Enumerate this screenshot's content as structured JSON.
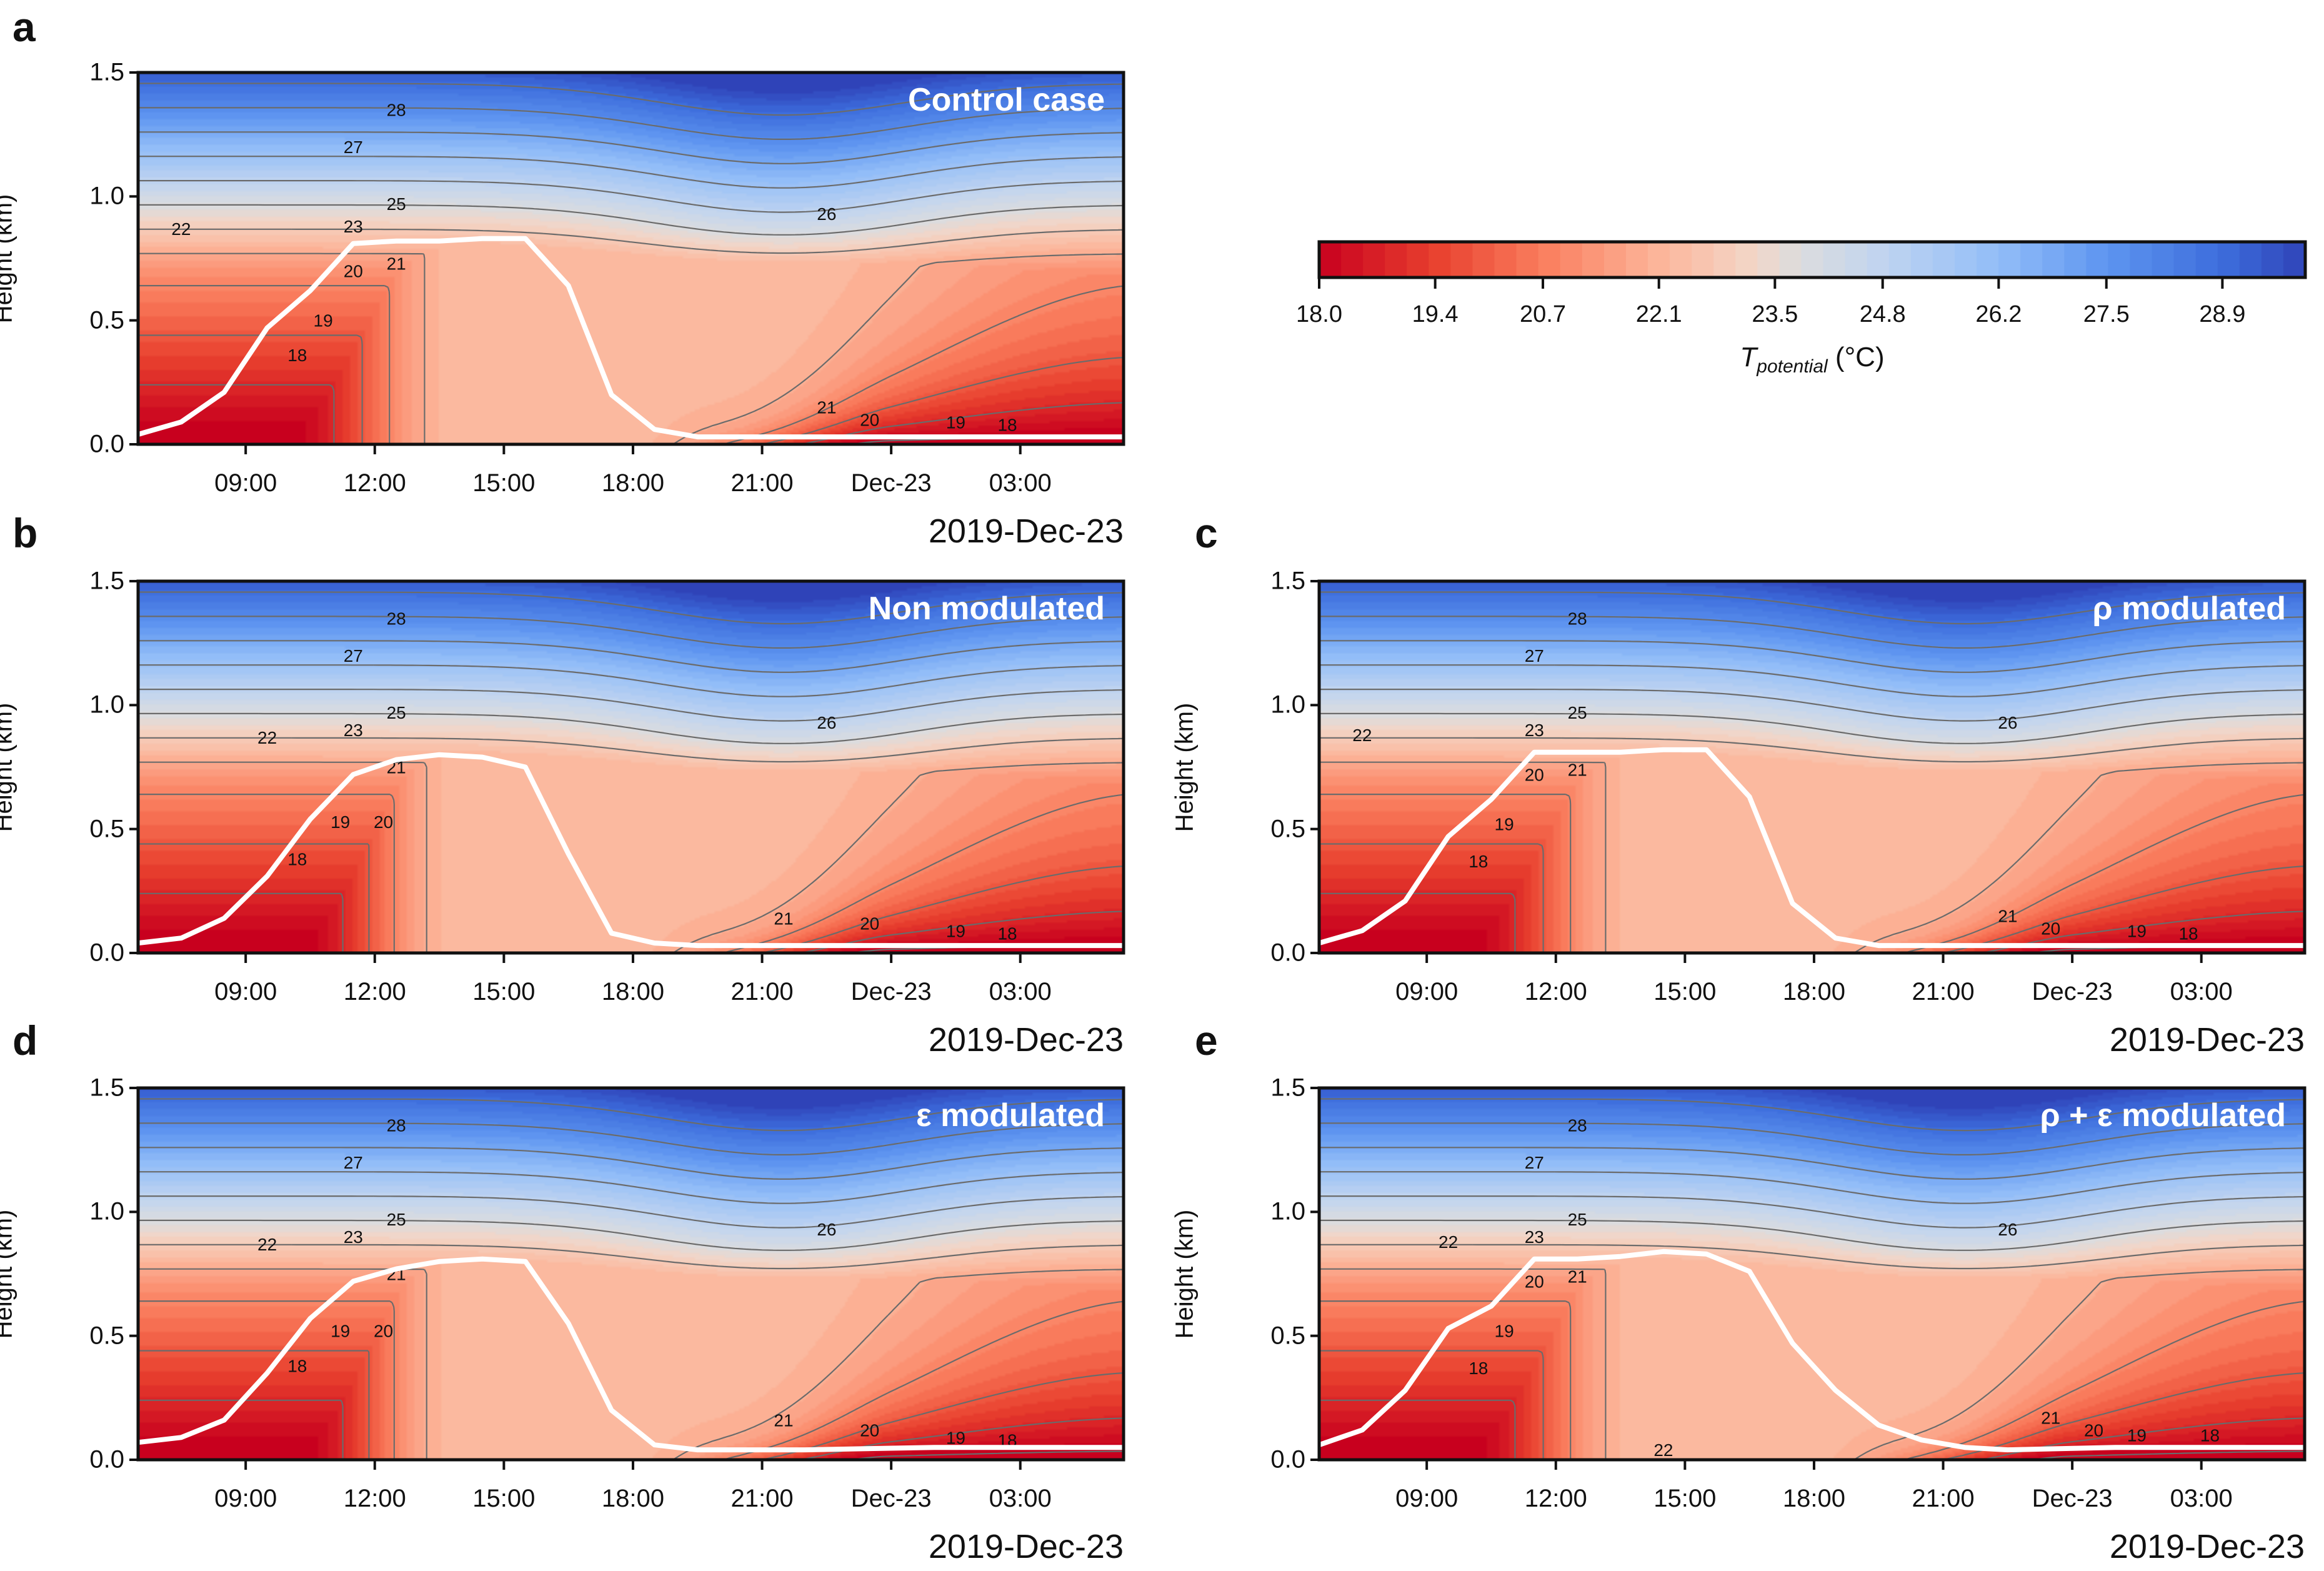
{
  "chart_data": {
    "type": "heatmap",
    "description_axis": {
      "ylabel": "Height (km)",
      "ylim": [
        0,
        1.5
      ],
      "yticks": [
        "0.0",
        "0.5",
        "1.0",
        "1.5"
      ],
      "ytick_values": [
        0,
        0.5,
        1.0,
        1.5
      ],
      "xlim_hours": [
        6.5,
        29.4
      ],
      "xticks": [
        "09:00",
        "12:00",
        "15:00",
        "18:00",
        "21:00",
        "Dec-23",
        "03:00"
      ],
      "xtick_hours": [
        9,
        12,
        15,
        18,
        21,
        24,
        27
      ],
      "date_label": "2019-Dec-23"
    },
    "colorbar": {
      "label_main": "T",
      "label_sub": "potential",
      "label_unit": " (°C)",
      "range": [
        18.0,
        29.9
      ],
      "ticks": [
        "18.0",
        "19.4",
        "20.7",
        "22.1",
        "23.5",
        "24.8",
        "26.2",
        "27.5",
        "28.9"
      ],
      "tick_values": [
        18.0,
        19.4,
        20.7,
        22.1,
        23.5,
        24.8,
        26.2,
        27.5,
        28.9
      ],
      "levels": 45
    },
    "contour_levels": [
      18,
      19,
      20,
      21,
      22,
      23,
      24,
      25,
      26,
      27,
      28,
      29
    ],
    "panels": [
      {
        "letter": "a",
        "title": "Control case",
        "blh_hours": [
          6.5,
          7.5,
          8.5,
          9.5,
          10.5,
          11.5,
          12.5,
          13.5,
          14.5,
          15.5,
          16.5,
          17.5,
          18.5,
          19.5,
          22,
          25,
          29.4
        ],
        "blh_km": [
          0.04,
          0.09,
          0.21,
          0.47,
          0.62,
          0.81,
          0.82,
          0.82,
          0.83,
          0.83,
          0.64,
          0.2,
          0.06,
          0.03,
          0.03,
          0.03,
          0.03
        ],
        "labels": [
          [
            "28",
            12.5,
            1.35
          ],
          [
            "27",
            11.5,
            1.2
          ],
          [
            "25",
            12.5,
            0.97
          ],
          [
            "23",
            11.5,
            0.88
          ],
          [
            "22",
            7.5,
            0.87
          ],
          [
            "20",
            11.5,
            0.7
          ],
          [
            "21",
            12.5,
            0.73
          ],
          [
            "19",
            10.8,
            0.5
          ],
          [
            "18",
            10.2,
            0.36
          ],
          [
            "26",
            22.5,
            0.93
          ],
          [
            "21",
            22.5,
            0.15
          ],
          [
            "20",
            23.5,
            0.1
          ],
          [
            "19",
            25.5,
            0.09
          ],
          [
            "18",
            26.7,
            0.08
          ]
        ]
      },
      {
        "letter": "b",
        "title": "Non modulated",
        "blh_hours": [
          6.5,
          7.5,
          8.5,
          9.5,
          10.5,
          11.5,
          12.5,
          13.5,
          14.5,
          15.5,
          16.5,
          17.5,
          18.5,
          19.5,
          22,
          25,
          29.4
        ],
        "blh_km": [
          0.04,
          0.06,
          0.14,
          0.31,
          0.54,
          0.72,
          0.78,
          0.8,
          0.79,
          0.75,
          0.4,
          0.08,
          0.04,
          0.03,
          0.03,
          0.03,
          0.03
        ],
        "labels": [
          [
            "28",
            12.5,
            1.35
          ],
          [
            "27",
            11.5,
            1.2
          ],
          [
            "25",
            12.5,
            0.97
          ],
          [
            "23",
            11.5,
            0.9
          ],
          [
            "22",
            9.5,
            0.87
          ],
          [
            "21",
            12.5,
            0.75
          ],
          [
            "20",
            12.2,
            0.53
          ],
          [
            "19",
            11.2,
            0.53
          ],
          [
            "18",
            10.2,
            0.38
          ],
          [
            "26",
            22.5,
            0.93
          ],
          [
            "21",
            21.5,
            0.14
          ],
          [
            "20",
            23.5,
            0.12
          ],
          [
            "19",
            25.5,
            0.09
          ],
          [
            "18",
            26.7,
            0.08
          ]
        ]
      },
      {
        "letter": "c",
        "title": "ρ modulated",
        "blh_hours": [
          6.5,
          7.5,
          8.5,
          9.5,
          10.5,
          11.5,
          12.5,
          13.5,
          14.5,
          15.5,
          16.5,
          17.5,
          18.5,
          19.5,
          22,
          25,
          29.4
        ],
        "blh_km": [
          0.04,
          0.09,
          0.21,
          0.47,
          0.62,
          0.81,
          0.81,
          0.81,
          0.82,
          0.82,
          0.63,
          0.2,
          0.06,
          0.03,
          0.03,
          0.03,
          0.03
        ],
        "labels": [
          [
            "28",
            12.5,
            1.35
          ],
          [
            "27",
            11.5,
            1.2
          ],
          [
            "25",
            12.5,
            0.97
          ],
          [
            "23",
            11.5,
            0.9
          ],
          [
            "22",
            7.5,
            0.88
          ],
          [
            "20",
            11.5,
            0.72
          ],
          [
            "21",
            12.5,
            0.74
          ],
          [
            "19",
            10.8,
            0.52
          ],
          [
            "18",
            10.2,
            0.37
          ],
          [
            "26",
            22.5,
            0.93
          ],
          [
            "21",
            22.5,
            0.15
          ],
          [
            "20",
            23.5,
            0.1
          ],
          [
            "19",
            25.5,
            0.09
          ],
          [
            "18",
            26.7,
            0.08
          ]
        ]
      },
      {
        "letter": "d",
        "title": "ε modulated",
        "blh_hours": [
          6.5,
          7.5,
          8.5,
          9.5,
          10.5,
          11.5,
          12.5,
          13.5,
          14.5,
          15.5,
          16.5,
          17.5,
          18.5,
          19.5,
          22,
          25,
          29.4
        ],
        "blh_km": [
          0.07,
          0.09,
          0.16,
          0.35,
          0.57,
          0.72,
          0.77,
          0.8,
          0.81,
          0.8,
          0.55,
          0.2,
          0.06,
          0.04,
          0.04,
          0.05,
          0.05
        ],
        "labels": [
          [
            "28",
            12.5,
            1.35
          ],
          [
            "27",
            11.5,
            1.2
          ],
          [
            "25",
            12.5,
            0.97
          ],
          [
            "23",
            11.5,
            0.9
          ],
          [
            "22",
            9.5,
            0.87
          ],
          [
            "21",
            12.5,
            0.75
          ],
          [
            "20",
            12.2,
            0.52
          ],
          [
            "19",
            11.2,
            0.52
          ],
          [
            "18",
            10.2,
            0.38
          ],
          [
            "26",
            22.5,
            0.93
          ],
          [
            "21",
            21.5,
            0.16
          ],
          [
            "20",
            23.5,
            0.12
          ],
          [
            "19",
            25.5,
            0.09
          ],
          [
            "18",
            26.7,
            0.08
          ]
        ]
      },
      {
        "letter": "e",
        "title": "ρ + ε modulated",
        "blh_hours": [
          6.5,
          7.5,
          8.5,
          9.5,
          10.5,
          11.5,
          12.5,
          13.5,
          14.5,
          15.5,
          16.5,
          17.5,
          18.5,
          19.5,
          20.5,
          21.5,
          22.5,
          25,
          29.4
        ],
        "blh_km": [
          0.06,
          0.12,
          0.28,
          0.53,
          0.62,
          0.81,
          0.81,
          0.82,
          0.84,
          0.83,
          0.76,
          0.47,
          0.28,
          0.14,
          0.08,
          0.05,
          0.04,
          0.05,
          0.05
        ],
        "labels": [
          [
            "28",
            12.5,
            1.35
          ],
          [
            "27",
            11.5,
            1.2
          ],
          [
            "25",
            12.5,
            0.97
          ],
          [
            "23",
            11.5,
            0.9
          ],
          [
            "22",
            9.5,
            0.88
          ],
          [
            "20",
            11.5,
            0.72
          ],
          [
            "21",
            12.5,
            0.74
          ],
          [
            "19",
            10.8,
            0.52
          ],
          [
            "18",
            10.2,
            0.37
          ],
          [
            "26",
            22.5,
            0.93
          ],
          [
            "22",
            14.5,
            0.04
          ],
          [
            "21",
            23.5,
            0.17
          ],
          [
            "20",
            24.5,
            0.12
          ],
          [
            "19",
            25.5,
            0.1
          ],
          [
            "18",
            27.2,
            0.1
          ]
        ]
      }
    ]
  }
}
